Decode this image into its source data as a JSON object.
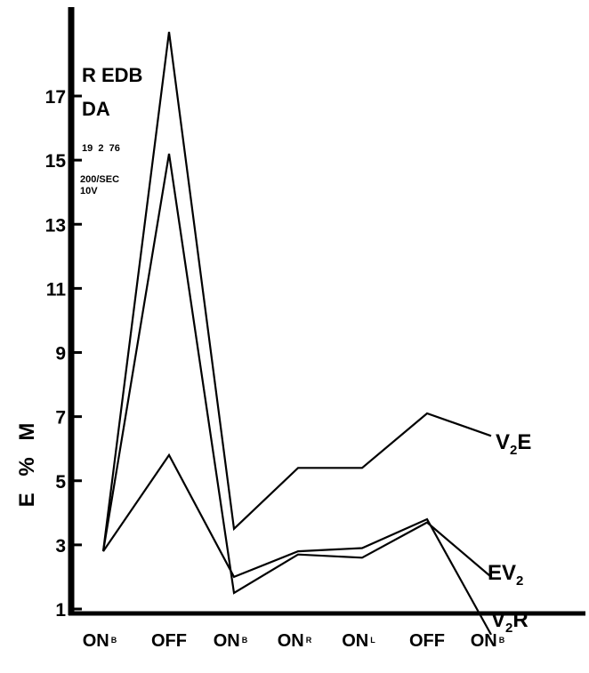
{
  "chart_data": {
    "type": "line",
    "categories": [
      "ON",
      "OFF",
      "ON",
      "ON",
      "ON",
      "OFF",
      "ON"
    ],
    "category_subscripts": [
      "B",
      "",
      "B",
      "R",
      "L",
      "",
      "B"
    ],
    "ylabel": "E % M",
    "ylim": [
      0,
      19.5
    ],
    "yticks": [
      1,
      3,
      5,
      7,
      9,
      11,
      13,
      15,
      17
    ],
    "grid": false,
    "annotations": [
      "R EDB",
      "DA",
      "19  2  76",
      "200/SEC",
      "10V"
    ],
    "series": [
      {
        "name": "V2E",
        "label_main": "V",
        "label_sub": "2",
        "label_tail": "E",
        "values": [
          2.8,
          19.0,
          3.5,
          5.4,
          5.4,
          7.1,
          6.4
        ]
      },
      {
        "name": "EV2",
        "label_main": "EV",
        "label_sub": "2",
        "label_tail": "",
        "values": [
          2.8,
          15.2,
          1.5,
          2.7,
          2.6,
          3.7,
          2.0
        ]
      },
      {
        "name": "V2R",
        "label_main": "V",
        "label_sub": "2",
        "label_tail": "R",
        "values": [
          2.8,
          5.8,
          2.0,
          2.8,
          2.9,
          3.8,
          0.2
        ]
      }
    ]
  }
}
